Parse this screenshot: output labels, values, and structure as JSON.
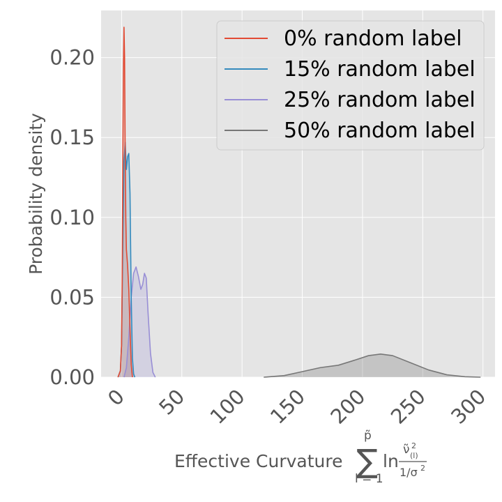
{
  "chart_data": {
    "type": "area",
    "title": "",
    "xlabel": "Effective Curvature",
    "xlabel_formula": {
      "sum_symbol": "∑",
      "sum_upper": "p̃",
      "sum_lower": "l = 1",
      "ln": "ln",
      "numerator": "ν̃",
      "numerator_sup": "2",
      "numerator_sub": "(l)",
      "denominator": "1/σ",
      "denominator_sup": "2"
    },
    "ylabel": "Probability density",
    "xlim": [
      -17,
      310
    ],
    "ylim": [
      0,
      0.2295
    ],
    "xticks": [
      0,
      50,
      100,
      150,
      200,
      250,
      300
    ],
    "yticks": [
      0.0,
      0.05,
      0.1,
      0.15,
      0.2
    ],
    "ytick_labels": [
      "0.00",
      "0.05",
      "0.10",
      "0.15",
      "0.20"
    ],
    "background": "#e5e5e5",
    "grid": true,
    "legend_position": "top-right",
    "series": [
      {
        "name": "0% random label",
        "color": "#e24a33",
        "fill": "#e24a33",
        "fill_opacity": 0.18,
        "points": [
          [
            -3,
            0
          ],
          [
            -1,
            0.004
          ],
          [
            0,
            0.02
          ],
          [
            0.5,
            0.06
          ],
          [
            1,
            0.13
          ],
          [
            1.5,
            0.19
          ],
          [
            2,
            0.219
          ],
          [
            2.5,
            0.2
          ],
          [
            3,
            0.14
          ],
          [
            3.5,
            0.1
          ],
          [
            4,
            0.08
          ],
          [
            5,
            0.07
          ],
          [
            6,
            0.055
          ],
          [
            7,
            0.03
          ],
          [
            8,
            0.008
          ],
          [
            9,
            0
          ]
        ]
      },
      {
        "name": "15% random label",
        "color": "#348abd",
        "fill": "#348abd",
        "fill_opacity": 0.18,
        "points": [
          [
            -3,
            0
          ],
          [
            -1,
            0.004
          ],
          [
            0,
            0.02
          ],
          [
            1,
            0.08
          ],
          [
            2,
            0.135
          ],
          [
            3,
            0.147
          ],
          [
            4,
            0.13
          ],
          [
            5,
            0.138
          ],
          [
            6,
            0.14
          ],
          [
            7,
            0.115
          ],
          [
            8,
            0.05
          ],
          [
            9,
            0.012
          ],
          [
            10,
            0.002
          ],
          [
            11,
            0
          ]
        ]
      },
      {
        "name": "25% random label",
        "color": "#988ed5",
        "fill": "#988ed5",
        "fill_opacity": 0.22,
        "points": [
          [
            2,
            0
          ],
          [
            4,
            0.006
          ],
          [
            6,
            0.025
          ],
          [
            8,
            0.05
          ],
          [
            10,
            0.065
          ],
          [
            12,
            0.069
          ],
          [
            14,
            0.063
          ],
          [
            16,
            0.055
          ],
          [
            17.5,
            0.058
          ],
          [
            19,
            0.065
          ],
          [
            20.5,
            0.062
          ],
          [
            22,
            0.04
          ],
          [
            24,
            0.015
          ],
          [
            26,
            0.003
          ],
          [
            28,
            0
          ]
        ]
      },
      {
        "name": "50% random label",
        "color": "#777777",
        "fill": "#777777",
        "fill_opacity": 0.3,
        "points": [
          [
            118,
            0
          ],
          [
            135,
            0.001
          ],
          [
            150,
            0.0035
          ],
          [
            165,
            0.006
          ],
          [
            180,
            0.0075
          ],
          [
            195,
            0.011
          ],
          [
            205,
            0.0135
          ],
          [
            215,
            0.0145
          ],
          [
            225,
            0.0135
          ],
          [
            240,
            0.009
          ],
          [
            255,
            0.0045
          ],
          [
            270,
            0.0015
          ],
          [
            285,
            0.0003
          ],
          [
            298,
            0
          ]
        ]
      }
    ]
  }
}
